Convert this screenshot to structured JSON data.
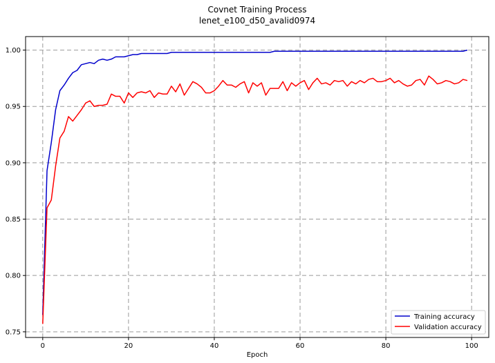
{
  "chart_data": {
    "type": "line",
    "title": "Covnet Training Process",
    "subtitle": "lenet_e100_d50_avalid0974",
    "xlabel": "Epoch",
    "ylabel": "",
    "xlim": [
      -4,
      104
    ],
    "ylim": [
      0.745,
      1.012
    ],
    "x_ticks": [
      0,
      20,
      40,
      60,
      80,
      100
    ],
    "y_ticks": [
      0.75,
      0.8,
      0.85,
      0.9,
      0.95,
      1.0
    ],
    "y_tick_labels": [
      "0.75",
      "0.80",
      "0.85",
      "0.90",
      "0.95",
      "1.00"
    ],
    "grid": true,
    "legend_position": "lower-right",
    "series": [
      {
        "name": "Training accuracy",
        "color": "#0000cc",
        "values": [
          0.765,
          0.893,
          0.918,
          0.947,
          0.964,
          0.969,
          0.975,
          0.98,
          0.982,
          0.987,
          0.988,
          0.989,
          0.988,
          0.991,
          0.992,
          0.991,
          0.992,
          0.994,
          0.994,
          0.994,
          0.995,
          0.996,
          0.996,
          0.997,
          0.997,
          0.997,
          0.997,
          0.997,
          0.997,
          0.997,
          0.998,
          0.998,
          0.998,
          0.998,
          0.998,
          0.998,
          0.998,
          0.998,
          0.998,
          0.998,
          0.998,
          0.998,
          0.998,
          0.998,
          0.998,
          0.998,
          0.998,
          0.998,
          0.998,
          0.998,
          0.998,
          0.998,
          0.998,
          0.998,
          0.999,
          0.999,
          0.999,
          0.999,
          0.999,
          0.999,
          0.999,
          0.999,
          0.999,
          0.999,
          0.999,
          0.999,
          0.999,
          0.999,
          0.999,
          0.999,
          0.999,
          0.999,
          0.999,
          0.999,
          0.999,
          0.999,
          0.999,
          0.999,
          0.999,
          0.999,
          0.999,
          0.999,
          0.999,
          0.999,
          0.999,
          0.999,
          0.999,
          0.999,
          0.999,
          0.999,
          0.999,
          0.999,
          0.999,
          0.999,
          0.999,
          0.999,
          0.999,
          0.999,
          0.999,
          1.0
        ]
      },
      {
        "name": "Validation accuracy",
        "color": "#ff0000",
        "values": [
          0.757,
          0.86,
          0.867,
          0.897,
          0.922,
          0.928,
          0.941,
          0.937,
          0.942,
          0.947,
          0.953,
          0.955,
          0.95,
          0.951,
          0.951,
          0.952,
          0.961,
          0.959,
          0.959,
          0.953,
          0.962,
          0.958,
          0.962,
          0.963,
          0.962,
          0.964,
          0.958,
          0.962,
          0.961,
          0.961,
          0.968,
          0.963,
          0.97,
          0.96,
          0.966,
          0.972,
          0.97,
          0.967,
          0.962,
          0.962,
          0.964,
          0.968,
          0.973,
          0.969,
          0.969,
          0.967,
          0.97,
          0.972,
          0.962,
          0.971,
          0.968,
          0.971,
          0.96,
          0.966,
          0.966,
          0.966,
          0.972,
          0.964,
          0.971,
          0.968,
          0.971,
          0.973,
          0.965,
          0.971,
          0.975,
          0.97,
          0.971,
          0.969,
          0.973,
          0.972,
          0.973,
          0.968,
          0.972,
          0.97,
          0.973,
          0.971,
          0.974,
          0.975,
          0.972,
          0.972,
          0.973,
          0.975,
          0.971,
          0.973,
          0.97,
          0.968,
          0.969,
          0.973,
          0.974,
          0.969,
          0.977,
          0.974,
          0.97,
          0.971,
          0.973,
          0.972,
          0.97,
          0.971,
          0.974,
          0.973
        ]
      }
    ]
  }
}
